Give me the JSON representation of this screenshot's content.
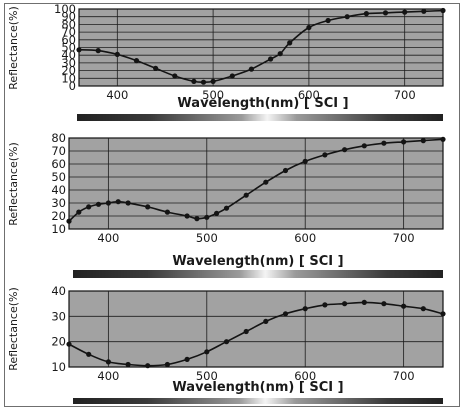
{
  "x_axis_label": "Wavelength(nm) [ SCI ]",
  "y_axis_label": "Reflectance(%)",
  "chart_data": [
    {
      "type": "line",
      "xlabel": "Wavelength(nm) [ SCI ]",
      "ylabel": "Reflectance(%)",
      "xlim": [
        360,
        740
      ],
      "ylim": [
        0,
        100
      ],
      "xticks": [
        400,
        500,
        600,
        700
      ],
      "yticks": [
        0,
        10,
        20,
        30,
        40,
        50,
        60,
        70,
        80,
        90,
        100
      ],
      "grid": true,
      "series": [
        {
          "x": [
            360,
            380,
            400,
            420,
            440,
            460,
            480,
            490,
            500,
            520,
            540,
            560,
            570,
            580,
            600,
            620,
            640,
            660,
            680,
            700,
            720,
            740
          ],
          "values": [
            47,
            46,
            41,
            33,
            23,
            13,
            6,
            5,
            6,
            13,
            22,
            35,
            42,
            56,
            76,
            85,
            90,
            94,
            95,
            96,
            97,
            98
          ]
        }
      ]
    },
    {
      "type": "line",
      "xlabel": "Wavelength(nm) [ SCI ]",
      "ylabel": "Reflectance(%)",
      "xlim": [
        360,
        740
      ],
      "ylim": [
        10,
        80
      ],
      "xticks": [
        400,
        500,
        600,
        700
      ],
      "yticks": [
        10,
        20,
        30,
        40,
        50,
        60,
        70,
        80
      ],
      "grid": true,
      "series": [
        {
          "x": [
            360,
            370,
            380,
            390,
            400,
            410,
            420,
            440,
            460,
            480,
            490,
            500,
            510,
            520,
            540,
            560,
            580,
            600,
            620,
            640,
            660,
            680,
            700,
            720,
            740
          ],
          "values": [
            16,
            23,
            27,
            29,
            30,
            31,
            30,
            27,
            23,
            20,
            18,
            19,
            22,
            26,
            36,
            46,
            55,
            62,
            67,
            71,
            74,
            76,
            77,
            78,
            79
          ]
        }
      ]
    },
    {
      "type": "line",
      "xlabel": "Wavelength(nm) [ SCI ]",
      "ylabel": "Reflectance(%)",
      "xlim": [
        360,
        740
      ],
      "ylim": [
        10,
        40
      ],
      "xticks": [
        400,
        500,
        600,
        700
      ],
      "yticks": [
        10,
        20,
        30,
        40
      ],
      "grid": true,
      "series": [
        {
          "x": [
            360,
            380,
            400,
            420,
            440,
            460,
            480,
            500,
            520,
            540,
            560,
            580,
            600,
            620,
            640,
            660,
            680,
            700,
            720,
            740
          ],
          "values": [
            19,
            15,
            12,
            11,
            10.5,
            11,
            13,
            16,
            20,
            24,
            28,
            31,
            33,
            34.5,
            35,
            35.5,
            35,
            34,
            33,
            31
          ]
        }
      ]
    }
  ]
}
